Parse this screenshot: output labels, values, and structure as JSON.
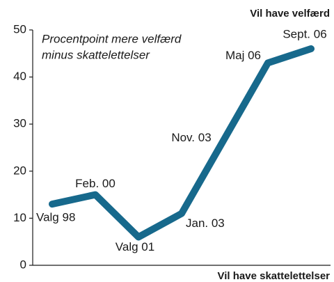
{
  "chart_data": {
    "type": "line",
    "subtitle": [
      "Procentpoint mere velfærd",
      "minus skattelettelser"
    ],
    "y_top_label": "Vil have velfærd",
    "y_bottom_label": "Vil have skattelettelser",
    "categories": [
      "Valg 98",
      "Feb. 00",
      "Valg 01",
      "Jan. 03",
      "Nov. 03",
      "Maj 06",
      "Sept. 06"
    ],
    "values": [
      13,
      15,
      6,
      11,
      27,
      43,
      46
    ],
    "color": "#17698c",
    "ylim": [
      0,
      50
    ],
    "yticks": [
      0,
      10,
      20,
      30,
      40,
      50
    ]
  }
}
